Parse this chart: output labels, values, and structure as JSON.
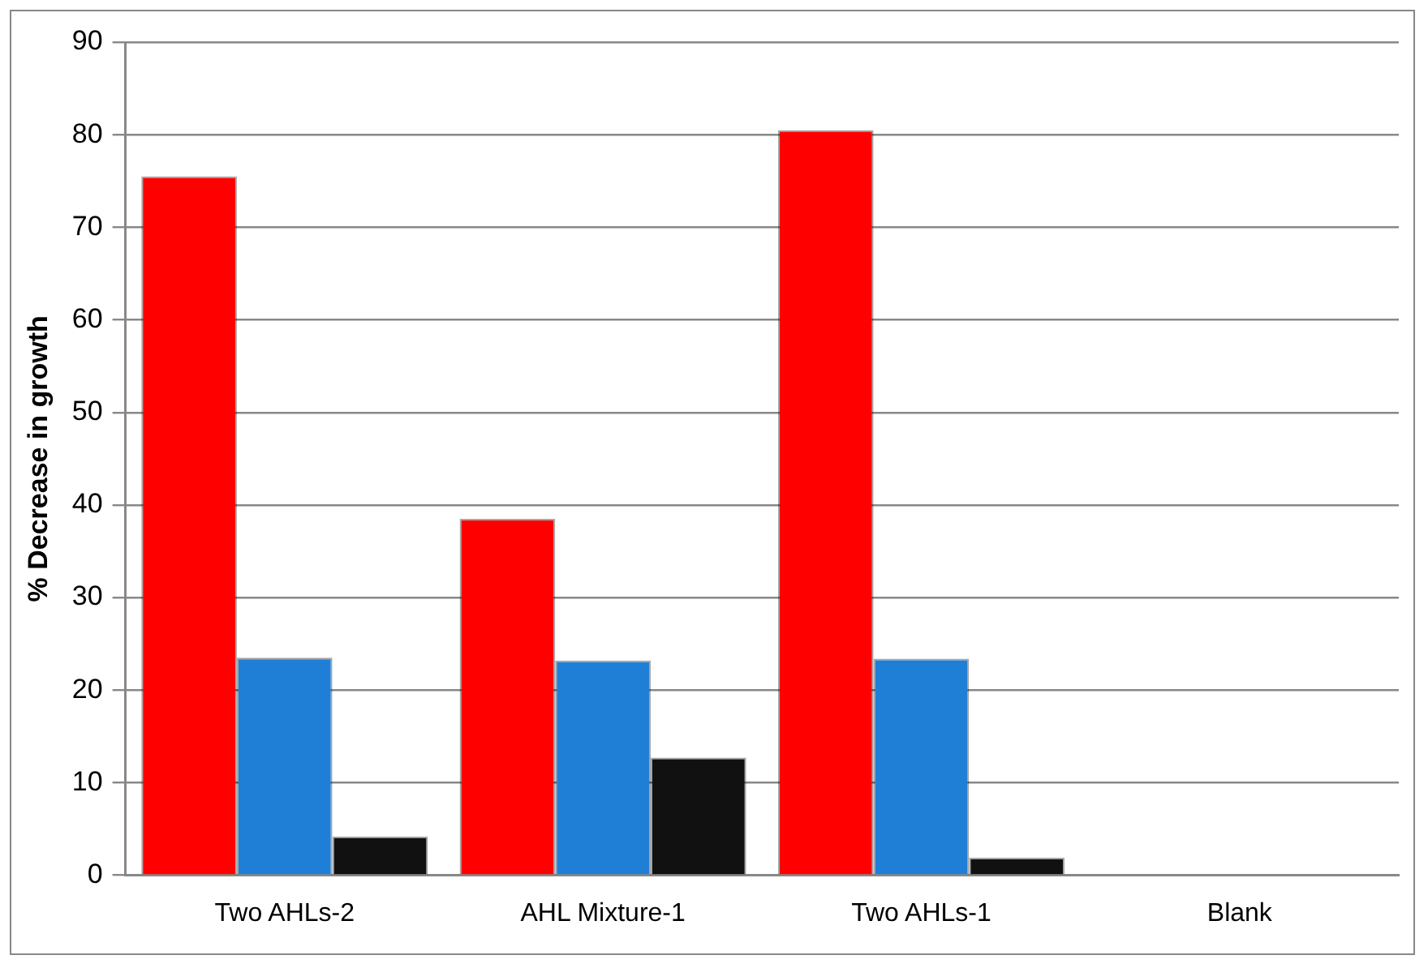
{
  "chart_data": {
    "type": "bar",
    "ylabel": "% Decrease in growth",
    "categories": [
      "Two AHLs-2",
      "AHL Mixture-1",
      "Two AHLs-1",
      "Blank"
    ],
    "series": [
      {
        "color": "#ff0000",
        "values": [
          75.5,
          38.5,
          80.5,
          0
        ]
      },
      {
        "color": "#1f7fd6",
        "values": [
          23.5,
          23.2,
          23.4,
          0
        ]
      },
      {
        "color": "#111111",
        "values": [
          4.2,
          12.7,
          1.9,
          0
        ]
      }
    ],
    "ylim": [
      0,
      90
    ],
    "yticks": [
      0,
      10,
      20,
      30,
      40,
      50,
      60,
      70,
      80,
      90
    ],
    "grid": "y",
    "legend": false
  }
}
